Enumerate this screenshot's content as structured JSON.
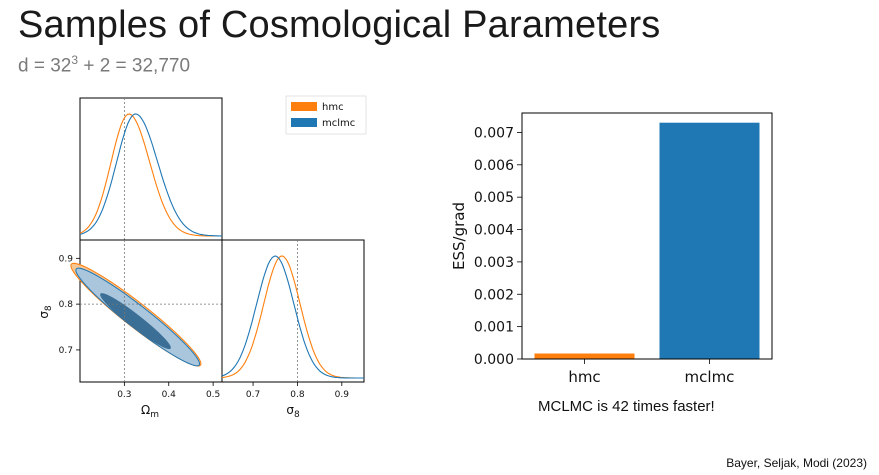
{
  "slide": {
    "title": "Samples of Cosmological Parameters",
    "subtitle_prefix": "d = 32",
    "subtitle_exponent": "3",
    "subtitle_suffix": " + 2 = 32,770",
    "caption": "MCLMC is 42 times faster!",
    "citation": "Bayer, Seljak, Modi (2023)"
  },
  "colors": {
    "hmc": "#ff7f0e",
    "mclmc": "#1f77b4",
    "hmc_fill": "#f6c693",
    "mclmc_fill": "#a9c6dd",
    "mclmc_core": "#3c6f96"
  },
  "chart_data": [
    {
      "type": "corner",
      "parameters": [
        "Omega_m",
        "sigma_8"
      ],
      "xlabel_bottom_left": "Ωm",
      "ylabel_bottom_left": "σ8",
      "xlabel_bottom_right": "σ8",
      "legend": [
        "hmc",
        "mclmc"
      ],
      "legend_position": "top-right",
      "true_values": {
        "Omega_m": 0.3,
        "sigma_8": 0.8
      },
      "omega_m_ticks": [
        "0.3",
        "0.4",
        "0.5"
      ],
      "omega_m_range": [
        0.2,
        0.52
      ],
      "sigma_8_ticks": [
        "0.7",
        "0.8",
        "0.9"
      ],
      "sigma_8_range": [
        0.63,
        0.94
      ],
      "sigma_8_x_ticks": [
        "0.7",
        "0.8",
        "0.9"
      ],
      "sigma_8_x_range": [
        0.63,
        0.95
      ],
      "series": [
        {
          "name": "hmc",
          "omega_m_mean": 0.31,
          "omega_m_std": 0.047,
          "sigma_8_mean": 0.765,
          "sigma_8_std": 0.041
        },
        {
          "name": "mclmc",
          "omega_m_mean": 0.325,
          "omega_m_std": 0.05,
          "sigma_8_mean": 0.75,
          "sigma_8_std": 0.042
        }
      ]
    },
    {
      "type": "bar",
      "categories": [
        "hmc",
        "mclmc"
      ],
      "values": [
        0.00017,
        0.0073
      ],
      "ylabel": "ESS/grad",
      "xlabel": "",
      "ylim": [
        0,
        0.0076
      ],
      "yticks": [
        "0.000",
        "0.001",
        "0.002",
        "0.003",
        "0.004",
        "0.005",
        "0.006",
        "0.007"
      ]
    }
  ]
}
